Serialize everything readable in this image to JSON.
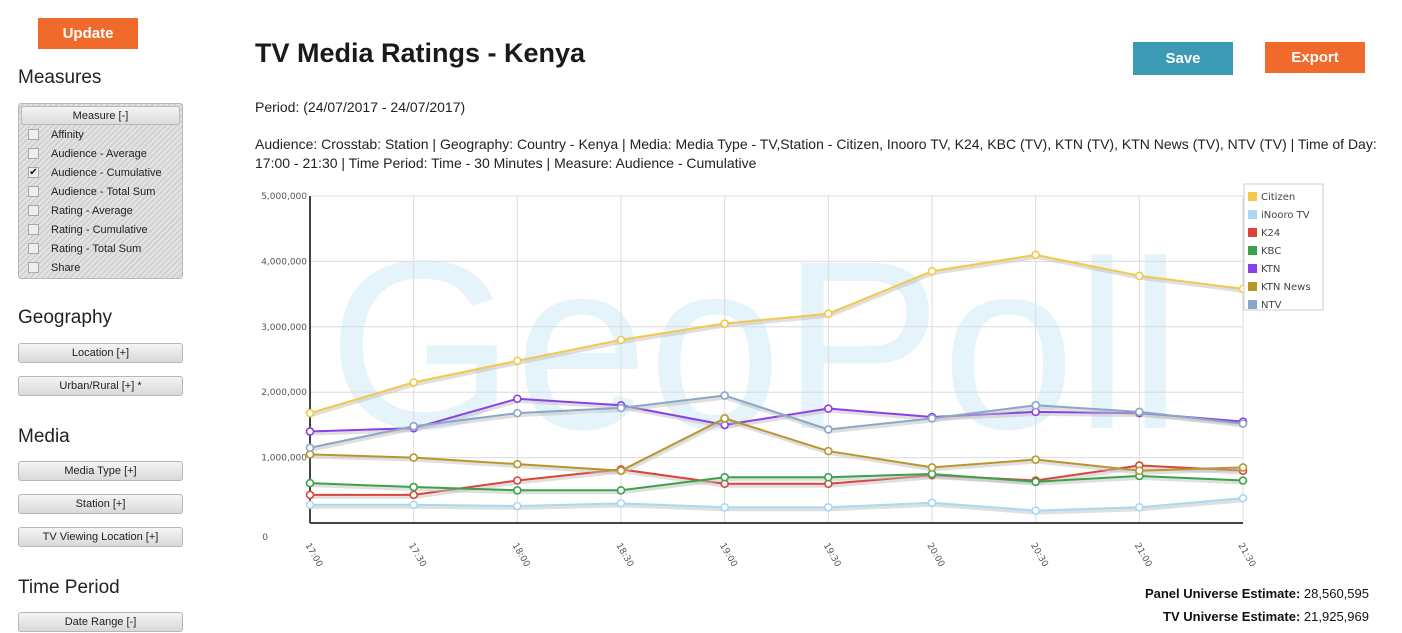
{
  "sidebar": {
    "update_label": "Update",
    "measures_title": "Measures",
    "measure_header": "Measure  [-]",
    "measure_items": [
      {
        "label": "Affinity",
        "checked": false
      },
      {
        "label": "Audience - Average",
        "checked": false
      },
      {
        "label": "Audience - Cumulative",
        "checked": true
      },
      {
        "label": "Audience - Total Sum",
        "checked": false
      },
      {
        "label": "Rating - Average",
        "checked": false
      },
      {
        "label": "Rating - Cumulative",
        "checked": false
      },
      {
        "label": "Rating - Total Sum",
        "checked": false
      },
      {
        "label": "Share",
        "checked": false
      }
    ],
    "geography_title": "Geography",
    "location_label": "Location  [+]",
    "urban_rural_label": "Urban/Rural  [+] *",
    "media_title": "Media",
    "media_type_label": "Media Type  [+]",
    "station_label": "Station  [+]",
    "tv_viewing_label": "TV Viewing Location  [+]",
    "time_period_title": "Time Period",
    "date_range_label": "Date Range  [-]"
  },
  "main": {
    "title": "TV Media Ratings - Kenya",
    "save_label": "Save",
    "export_label": "Export",
    "period": "Period: (24/07/2017 - 24/07/2017)",
    "description": "Audience: Crosstab: Station | Geography: Country - Kenya | Media: Media Type - TV,Station - Citizen, Inooro TV, K24, KBC (TV), KTN (TV), KTN News (TV), NTV (TV) | Time of Day: 17:00 - 21:30 | Time Period: Time - 30 Minutes | Measure: Audience - Cumulative",
    "panel_label": "Panel Universe Estimate:",
    "panel_value": "28,560,595",
    "tv_label": "TV Universe Estimate:",
    "tv_value": "21,925,969"
  },
  "chart_data": {
    "type": "line",
    "watermark": "GeoPoll",
    "categories": [
      "17:00",
      "17:30",
      "18:00",
      "18:30",
      "19:00",
      "19:30",
      "20:00",
      "20:30",
      "21:00",
      "21:30"
    ],
    "y_ticks": [
      "0",
      "1,000,000",
      "2,000,000",
      "3,000,000",
      "4,000,000",
      "5,000,000"
    ],
    "ylim": [
      0,
      5000000
    ],
    "grid": true,
    "legend_position": "right",
    "series": [
      {
        "name": "Citizen",
        "color": "#f2c94c",
        "values": [
          1680000,
          2150000,
          2480000,
          2800000,
          3050000,
          3200000,
          3850000,
          4100000,
          3780000,
          3580000
        ]
      },
      {
        "name": "iNooro TV",
        "color": "#a9d8f5",
        "values": [
          280000,
          280000,
          260000,
          300000,
          240000,
          240000,
          310000,
          190000,
          240000,
          380000
        ]
      },
      {
        "name": "K24",
        "color": "#d9453b",
        "values": [
          430000,
          430000,
          650000,
          820000,
          600000,
          600000,
          730000,
          650000,
          880000,
          800000
        ]
      },
      {
        "name": "KBC",
        "color": "#3aa34a",
        "values": [
          610000,
          550000,
          500000,
          500000,
          700000,
          700000,
          750000,
          630000,
          720000,
          650000
        ]
      },
      {
        "name": "KTN",
        "color": "#8b3fe8",
        "values": [
          1400000,
          1450000,
          1900000,
          1800000,
          1500000,
          1750000,
          1620000,
          1700000,
          1680000,
          1550000
        ]
      },
      {
        "name": "KTN News",
        "color": "#b8962e",
        "values": [
          1050000,
          1000000,
          900000,
          800000,
          1600000,
          1100000,
          850000,
          970000,
          800000,
          850000
        ]
      },
      {
        "name": "NTV",
        "color": "#8aa6c8",
        "values": [
          1150000,
          1480000,
          1680000,
          1760000,
          1950000,
          1430000,
          1600000,
          1800000,
          1700000,
          1520000
        ]
      }
    ]
  }
}
